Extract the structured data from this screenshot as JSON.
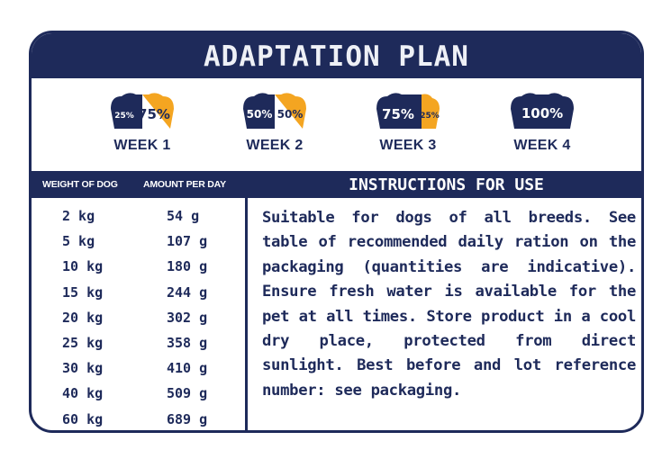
{
  "title": "ADAPTATION PLAN",
  "colors": {
    "navy": "#1e2a5a",
    "orange": "#f4a521",
    "white": "#ffffff"
  },
  "weeks": [
    {
      "label": "WEEK 1",
      "left_pct": "25%",
      "right_pct": "75%",
      "old_fraction": 0.25
    },
    {
      "label": "WEEK 2",
      "left_pct": "50%",
      "right_pct": "50%",
      "old_fraction": 0.5
    },
    {
      "label": "WEEK 3",
      "left_pct": "75%",
      "right_pct": "25%",
      "old_fraction": 0.75
    },
    {
      "label": "WEEK 4",
      "left_pct": "100%",
      "right_pct": "",
      "old_fraction": 1.0
    }
  ],
  "table": {
    "header_weight": "WEIGHT OF DOG",
    "header_amount": "AMOUNT PER DAY",
    "rows": [
      {
        "weight": "2 kg",
        "amount": "54 g"
      },
      {
        "weight": "5 kg",
        "amount": "107 g"
      },
      {
        "weight": "10 kg",
        "amount": "180 g"
      },
      {
        "weight": "15 kg",
        "amount": "244 g"
      },
      {
        "weight": "20 kg",
        "amount": "302 g"
      },
      {
        "weight": "25 kg",
        "amount": "358 g"
      },
      {
        "weight": "30 kg",
        "amount": "410 g"
      },
      {
        "weight": "40 kg",
        "amount": "509 g"
      },
      {
        "weight": "60 kg",
        "amount": "689 g"
      }
    ]
  },
  "instructions": {
    "header": "INSTRUCTIONS FOR USE",
    "text": "Suitable for dogs of all breeds. See table of recommended daily ration on the packaging (quantities are indicative). Ensure fresh water is available for the pet at all times. Store product in a cool dry place, protected from direct sunlight. Best before and lot reference number: see packaging."
  }
}
